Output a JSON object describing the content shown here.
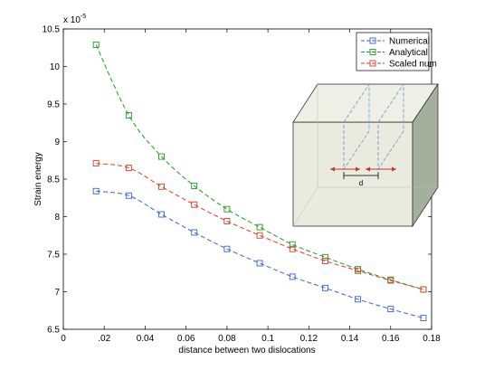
{
  "chart_data": {
    "type": "line",
    "xlabel": "distance between two dislocations",
    "ylabel": "Strain energy",
    "exponent_label": "x 10",
    "exponent_power": "-5",
    "xlim": [
      0,
      0.18
    ],
    "ylim": [
      6.5,
      10.5
    ],
    "x_ticks": [
      0,
      0.02,
      0.04,
      0.06,
      0.08,
      0.1,
      0.12,
      0.14,
      0.16,
      0.18
    ],
    "x_tick_labels": [
      "0",
      ".02",
      "0.04",
      "0.06",
      "0.08",
      "0.1",
      "0.12",
      "0.14",
      "0.16",
      "0.18"
    ],
    "y_ticks": [
      6.5,
      7,
      7.5,
      8,
      8.5,
      9,
      9.5,
      10,
      10.5
    ],
    "y_tick_labels": [
      "6.5",
      "7",
      "7.5",
      "8",
      "8.5",
      "9",
      "9.5",
      "10",
      "10.5"
    ],
    "x": [
      0.016,
      0.032,
      0.048,
      0.064,
      0.08,
      0.096,
      0.112,
      0.128,
      0.144,
      0.16,
      0.176
    ],
    "series": [
      {
        "name": "Numerical",
        "color": "#3c5fd6",
        "values": [
          8.34,
          8.28,
          8.03,
          7.79,
          7.57,
          7.38,
          7.2,
          7.05,
          6.9,
          6.77,
          6.65
        ]
      },
      {
        "name": "Analytical",
        "color": "#1f9a1f",
        "values": [
          10.29,
          9.35,
          8.8,
          8.41,
          8.1,
          7.86,
          7.63,
          7.46,
          7.3,
          7.16,
          7.03
        ]
      },
      {
        "name": "Scaled num",
        "color": "#d93a2a",
        "values": [
          8.71,
          8.65,
          8.4,
          8.16,
          7.94,
          7.75,
          7.57,
          7.41,
          7.28,
          7.15,
          7.03
        ]
      }
    ],
    "legend_position": "top-right",
    "grid": false,
    "marker": "square",
    "linestyle": "dashed",
    "inset": {
      "label": "d",
      "description_icon": "dislocation-box-diagram"
    }
  }
}
